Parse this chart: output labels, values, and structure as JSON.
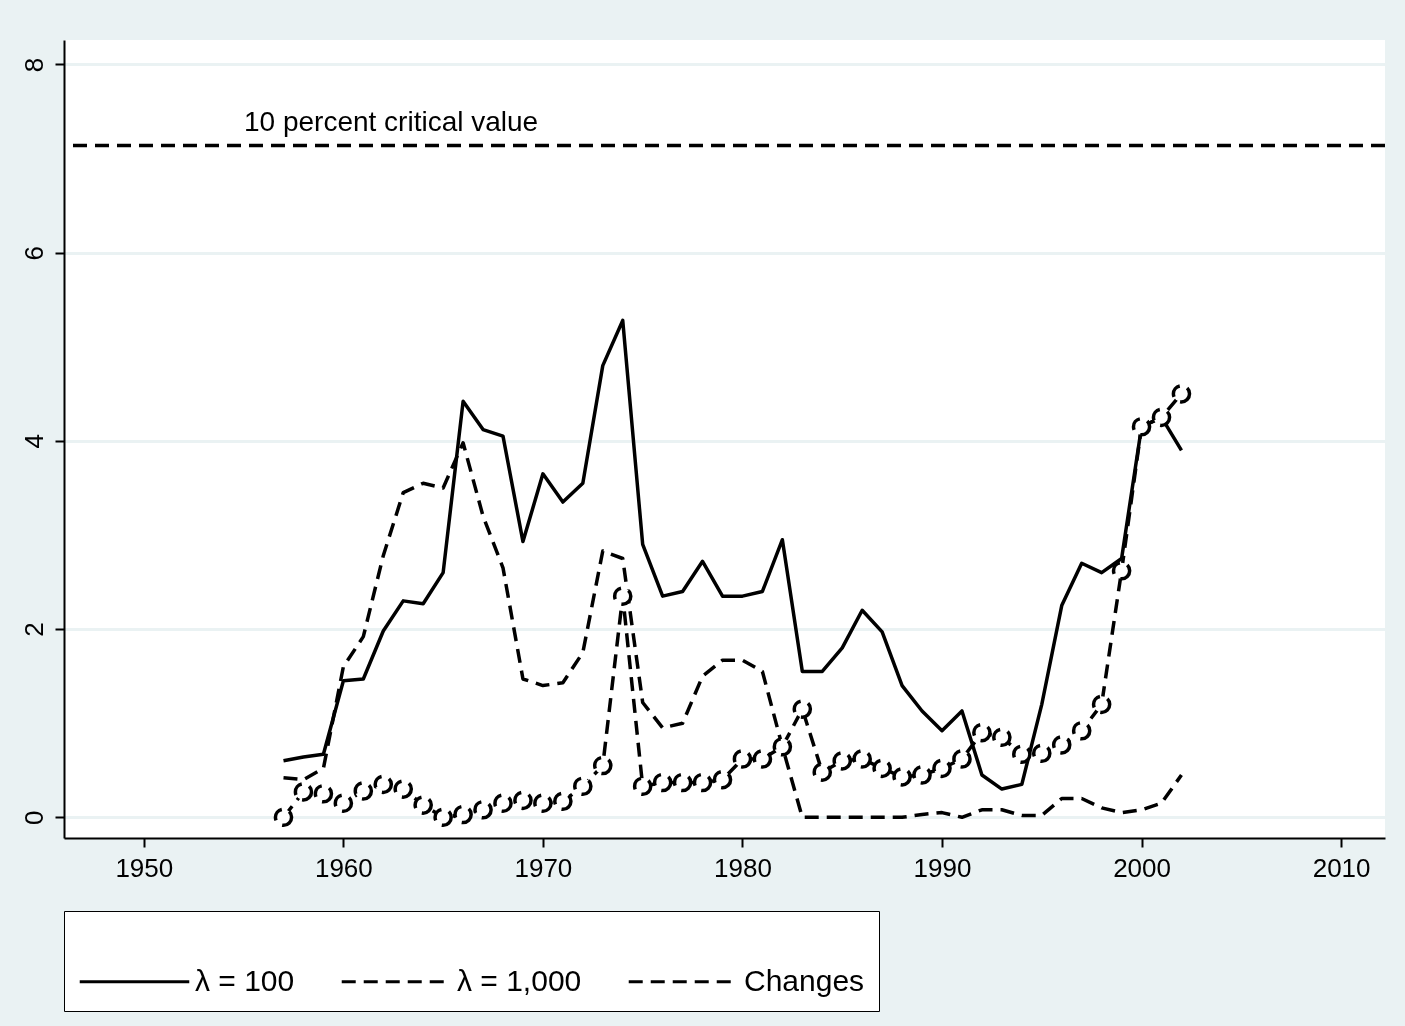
{
  "chart_data": {
    "type": "line",
    "x": [
      1957,
      1958,
      1959,
      1960,
      1961,
      1962,
      1963,
      1964,
      1965,
      1966,
      1967,
      1968,
      1969,
      1970,
      1971,
      1972,
      1973,
      1974,
      1975,
      1976,
      1977,
      1978,
      1979,
      1980,
      1981,
      1982,
      1983,
      1984,
      1985,
      1986,
      1987,
      1988,
      1989,
      1990,
      1991,
      1992,
      1993,
      1994,
      1995,
      1996,
      1997,
      1998,
      1999,
      2000,
      2001,
      2002
    ],
    "series": [
      {
        "name": "λ = 100",
        "color": "#000000",
        "line_style": "solid",
        "marker": "none",
        "values": [
          0.6,
          0.64,
          0.67,
          1.45,
          1.47,
          1.98,
          2.3,
          2.27,
          2.6,
          4.42,
          4.12,
          4.05,
          2.93,
          3.65,
          3.35,
          3.55,
          4.8,
          5.28,
          2.9,
          2.35,
          2.4,
          2.72,
          2.35,
          2.35,
          2.4,
          2.95,
          1.55,
          1.55,
          1.8,
          2.2,
          1.97,
          1.4,
          1.13,
          0.92,
          1.13,
          0.45,
          0.3,
          0.35,
          1.2,
          2.25,
          2.7,
          2.6,
          2.75,
          4.15,
          4.25,
          3.9
        ]
      },
      {
        "name": "λ = 1,000",
        "color": "#000000",
        "line_style": "dashed",
        "marker": "none",
        "values": [
          0.42,
          0.4,
          0.52,
          1.6,
          1.92,
          2.78,
          3.45,
          3.55,
          3.5,
          3.98,
          3.2,
          2.65,
          1.47,
          1.4,
          1.43,
          1.75,
          2.83,
          2.75,
          1.22,
          0.95,
          1.0,
          1.5,
          1.67,
          1.67,
          1.55,
          0.75,
          0,
          0,
          0,
          0,
          0,
          0,
          0.03,
          0.05,
          0,
          0.08,
          0.08,
          0.02,
          0.02,
          0.2,
          0.2,
          0.1,
          0.05,
          0.08,
          0.15,
          0.45
        ]
      },
      {
        "name": "Changes",
        "color": "#000000",
        "line_style": "dashed",
        "marker": "circle",
        "values": [
          0,
          0.27,
          0.25,
          0.15,
          0.28,
          0.35,
          0.3,
          0.13,
          0,
          0.03,
          0.08,
          0.15,
          0.18,
          0.15,
          0.17,
          0.33,
          0.55,
          2.35,
          0.33,
          0.37,
          0.37,
          0.37,
          0.4,
          0.62,
          0.62,
          0.75,
          1.15,
          0.48,
          0.6,
          0.62,
          0.52,
          0.43,
          0.45,
          0.52,
          0.62,
          0.9,
          0.85,
          0.67,
          0.68,
          0.77,
          0.92,
          1.2,
          2.62,
          4.15,
          4.25,
          4.5
        ]
      }
    ],
    "xlim": [
      1946,
      2012.2
    ],
    "xticks": [
      1950,
      1960,
      1970,
      1980,
      1990,
      2000,
      2010
    ],
    "ylim": [
      -0.22,
      8.26
    ],
    "yticks": [
      0,
      2,
      4,
      6,
      8
    ],
    "grid": "y",
    "legend": "bottom",
    "ref_lines": [
      {
        "axis": "y",
        "value": 7.14,
        "label": "10 percent critical value",
        "line_style": "dashed",
        "color": "#000000"
      }
    ]
  }
}
